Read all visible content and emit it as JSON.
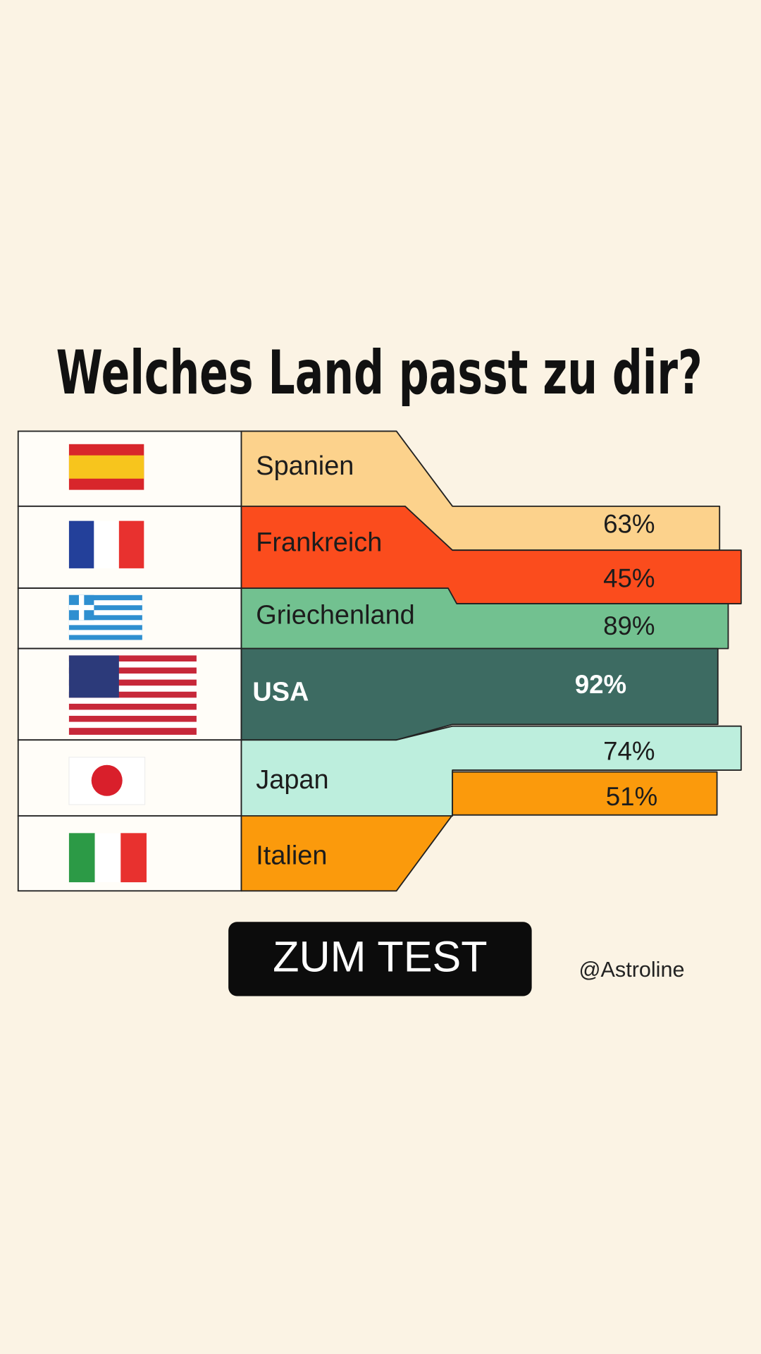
{
  "header": {
    "title": "Welches Land passt zu dir?"
  },
  "rows": [
    {
      "country": "Spanien",
      "percent": "63%"
    },
    {
      "country": "Frankreich",
      "percent": "45%"
    },
    {
      "country": "Griechenland",
      "percent": "89%"
    },
    {
      "country": "USA",
      "percent": "92%"
    },
    {
      "country": "Japan",
      "percent": "74%"
    },
    {
      "country": "Italien",
      "percent": "51%"
    }
  ],
  "button": {
    "label": "ZUM TEST"
  },
  "footer": {
    "handle": "@Astroline"
  }
}
